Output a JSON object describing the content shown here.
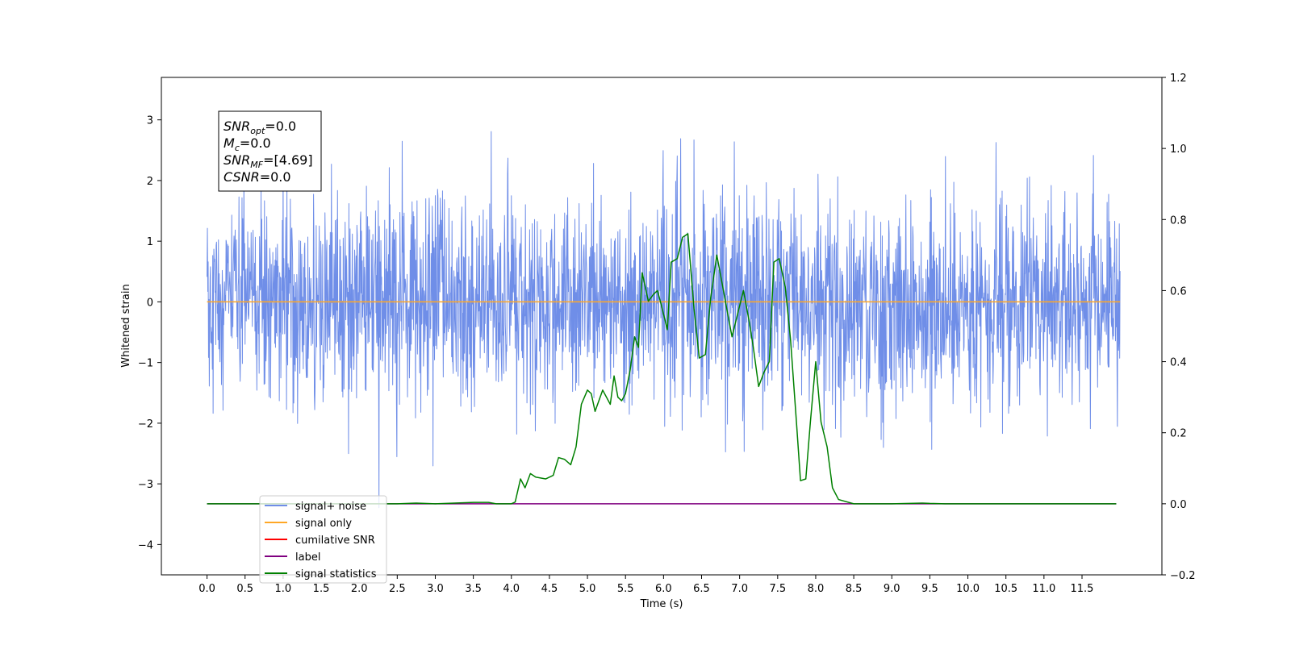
{
  "chart_data": {
    "type": "line",
    "xlabel": "Time (s)",
    "ylabel": "Whitened strain",
    "xlim": [
      -0.6,
      12.55
    ],
    "ylim": [
      -4.5,
      3.7
    ],
    "y2lim": [
      -0.2,
      1.2
    ],
    "grid": false,
    "legend_placement": "lower-left",
    "x_ticks": [
      "0.0",
      "0.5",
      "1.0",
      "1.5",
      "2.0",
      "2.5",
      "3.0",
      "3.5",
      "4.0",
      "4.5",
      "5.0",
      "5.5",
      "6.0",
      "6.5",
      "7.0",
      "7.5",
      "8.0",
      "8.5",
      "9.0",
      "9.5",
      "10.0",
      "10.5",
      "11.0",
      "11.5"
    ],
    "y_ticks": [
      "3",
      "2",
      "1",
      "0",
      "−1",
      "−2",
      "−3",
      "−4"
    ],
    "y2_ticks": [
      "1.2",
      "1.0",
      "0.8",
      "0.6",
      "0.4",
      "0.2",
      "0.0",
      "−0.2"
    ],
    "annotation": {
      "lines": [
        {
          "sym": "SNR",
          "sub": "opt",
          "val": "=0.0"
        },
        {
          "sym": "M",
          "sub": "c",
          "val": "=0.0"
        },
        {
          "sym": "SNR",
          "sub": "MF",
          "val": "=[4.69]"
        },
        {
          "sym": "CSNR",
          "sub": "",
          "val": "=0.0"
        }
      ]
    },
    "series": [
      {
        "name": "signal+ noise",
        "color": "#6f8ee8",
        "axis": "left",
        "noise": {
          "x_start": 0.0,
          "x_end": 12.0,
          "std": 0.85,
          "min": -3.65,
          "max": 3.35
        }
      },
      {
        "name": "signal only",
        "color": "#ffa726",
        "axis": "left",
        "x": [
          0.0,
          12.0
        ],
        "y": [
          0.0,
          0.0
        ]
      },
      {
        "name": "cumilative SNR",
        "color": "#ff0000",
        "axis": "right",
        "x": [],
        "y": []
      },
      {
        "name": "label",
        "color": "#800080",
        "axis": "right",
        "x": [
          0.0,
          11.95
        ],
        "y": [
          0.0,
          0.0
        ]
      },
      {
        "name": "signal statistics",
        "color": "#008000",
        "axis": "right",
        "x": [
          0.0,
          0.5,
          1.0,
          1.5,
          2.0,
          2.5,
          2.75,
          3.0,
          3.5,
          3.7,
          3.8,
          4.0,
          4.05,
          4.12,
          4.18,
          4.25,
          4.32,
          4.45,
          4.55,
          4.62,
          4.7,
          4.78,
          4.85,
          4.92,
          5.0,
          5.05,
          5.1,
          5.2,
          5.3,
          5.35,
          5.4,
          5.45,
          5.5,
          5.56,
          5.62,
          5.67,
          5.72,
          5.8,
          5.87,
          5.92,
          5.97,
          6.05,
          6.1,
          6.18,
          6.25,
          6.32,
          6.4,
          6.47,
          6.55,
          6.62,
          6.7,
          6.77,
          6.83,
          6.9,
          6.98,
          7.05,
          7.12,
          7.18,
          7.25,
          7.32,
          7.39,
          7.45,
          7.52,
          7.6,
          7.67,
          7.75,
          7.8,
          7.87,
          7.93,
          8.0,
          8.07,
          8.15,
          8.22,
          8.3,
          8.5,
          9.0,
          9.4,
          9.5,
          9.7,
          10.0,
          10.5,
          11.0,
          11.5,
          11.95
        ],
        "y": [
          0.0,
          0.0,
          0.0,
          0.0,
          0.0,
          0.0,
          0.002,
          0.0,
          0.004,
          0.004,
          0.0,
          0.0,
          0.005,
          0.07,
          0.045,
          0.085,
          0.075,
          0.07,
          0.08,
          0.13,
          0.125,
          0.11,
          0.16,
          0.28,
          0.32,
          0.31,
          0.26,
          0.32,
          0.28,
          0.36,
          0.3,
          0.29,
          0.31,
          0.375,
          0.47,
          0.44,
          0.65,
          0.57,
          0.59,
          0.6,
          0.56,
          0.49,
          0.68,
          0.69,
          0.75,
          0.76,
          0.55,
          0.41,
          0.42,
          0.58,
          0.7,
          0.62,
          0.55,
          0.47,
          0.54,
          0.6,
          0.52,
          0.44,
          0.33,
          0.37,
          0.4,
          0.68,
          0.69,
          0.61,
          0.46,
          0.22,
          0.065,
          0.07,
          0.23,
          0.4,
          0.23,
          0.16,
          0.045,
          0.012,
          0.0,
          0.0,
          0.002,
          0.001,
          0.0,
          0.0,
          0.0,
          0.0,
          0.0,
          0.0
        ]
      }
    ]
  }
}
